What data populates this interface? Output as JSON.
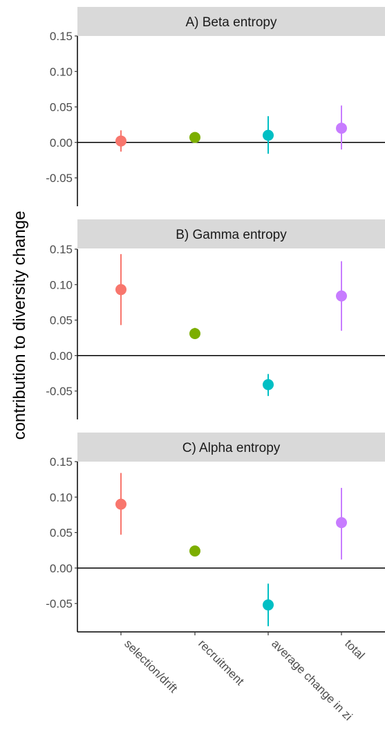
{
  "chart_data": {
    "type": "scatter",
    "ylabel": "contribution to diversity change",
    "xlabel": "",
    "categories": [
      "selection/drift",
      "recruitment",
      "average change in zi",
      "total"
    ],
    "category_colors": [
      "#F8766D",
      "#7CAE00",
      "#00BFC4",
      "#C77CFF"
    ],
    "yticks": [
      "0.15",
      "0.10",
      "0.05",
      "0.00",
      "-0.05"
    ],
    "ytick_values": [
      0.15,
      0.1,
      0.05,
      0.0,
      -0.05
    ],
    "ylim": [
      -0.09,
      0.15
    ],
    "zero_line": 0,
    "grid": false,
    "panels": [
      {
        "title": "A) Beta entropy",
        "points": [
          {
            "category": "selection/drift",
            "y": 0.002,
            "low": -0.013,
            "high": 0.017
          },
          {
            "category": "recruitment",
            "y": 0.007,
            "low": 0.003,
            "high": 0.011
          },
          {
            "category": "average change in zi",
            "y": 0.01,
            "low": -0.016,
            "high": 0.037
          },
          {
            "category": "total",
            "y": 0.02,
            "low": -0.01,
            "high": 0.052
          }
        ]
      },
      {
        "title": "B) Gamma entropy",
        "points": [
          {
            "category": "selection/drift",
            "y": 0.093,
            "low": 0.043,
            "high": 0.143
          },
          {
            "category": "recruitment",
            "y": 0.031,
            "low": 0.024,
            "high": 0.039
          },
          {
            "category": "average change in zi",
            "y": -0.041,
            "low": -0.057,
            "high": -0.026
          },
          {
            "category": "total",
            "y": 0.084,
            "low": 0.035,
            "high": 0.133
          }
        ]
      },
      {
        "title": "C) Alpha entropy",
        "points": [
          {
            "category": "selection/drift",
            "y": 0.09,
            "low": 0.047,
            "high": 0.134
          },
          {
            "category": "recruitment",
            "y": 0.024,
            "low": 0.019,
            "high": 0.029
          },
          {
            "category": "average change in zi",
            "y": -0.052,
            "low": -0.082,
            "high": -0.022
          },
          {
            "category": "total",
            "y": 0.064,
            "low": 0.012,
            "high": 0.113
          }
        ]
      }
    ]
  }
}
